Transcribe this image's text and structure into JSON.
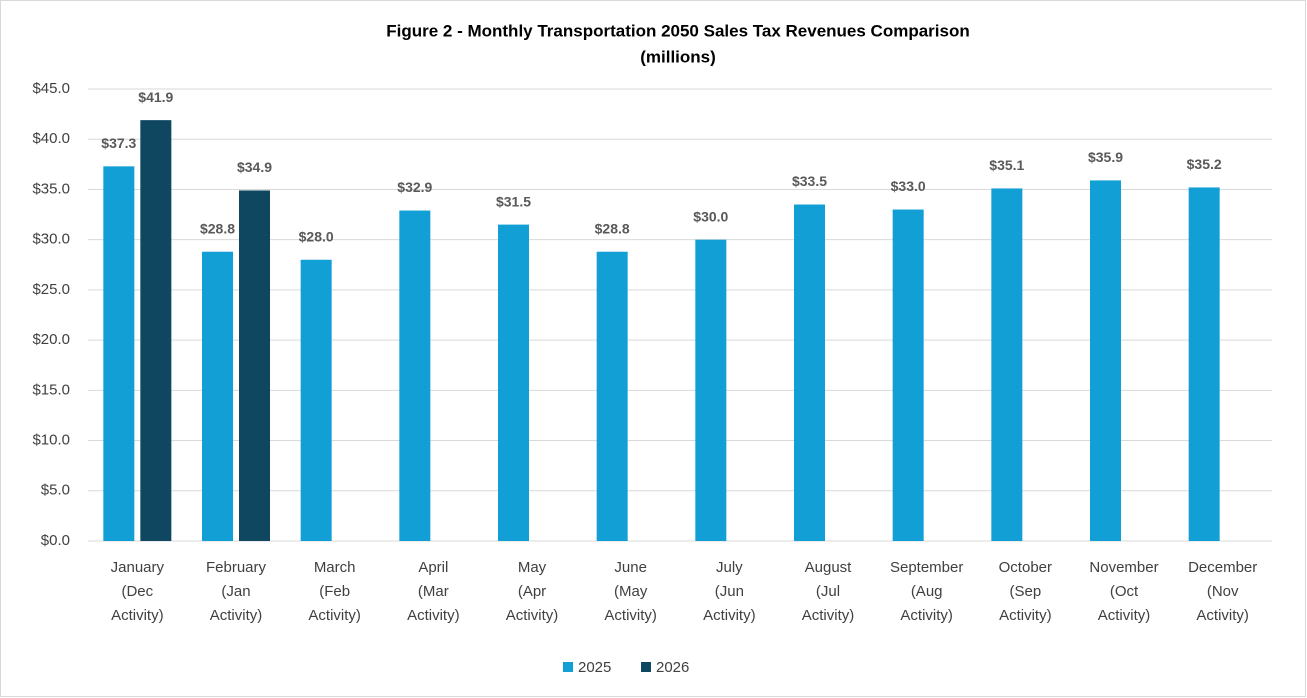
{
  "chart_data": {
    "type": "bar",
    "title": "Figure 2 - Monthly Transportation 2050 Sales Tax Revenues Comparison",
    "subtitle": "(millions)",
    "categories": [
      [
        "January",
        "(Dec",
        "Activity)"
      ],
      [
        "February",
        "(Jan",
        "Activity)"
      ],
      [
        "March",
        "(Feb",
        "Activity)"
      ],
      [
        "April",
        "(Mar",
        "Activity)"
      ],
      [
        "May",
        "(Apr",
        "Activity)"
      ],
      [
        "June",
        "(May",
        "Activity)"
      ],
      [
        "July",
        "(Jun",
        "Activity)"
      ],
      [
        "August",
        "(Jul",
        "Activity)"
      ],
      [
        "September",
        "(Aug",
        "Activity)"
      ],
      [
        "October",
        "(Sep",
        "Activity)"
      ],
      [
        "November",
        "(Oct",
        "Activity)"
      ],
      [
        "December",
        "(Nov",
        "Activity)"
      ]
    ],
    "series": [
      {
        "name": "2025",
        "color": "#129fd6",
        "values": [
          37.3,
          28.8,
          28.0,
          32.9,
          31.5,
          28.8,
          30.0,
          33.5,
          33.0,
          35.1,
          35.9,
          35.2
        ],
        "value_labels": [
          "$37.3",
          "$28.8",
          "$28.0",
          "$32.9",
          "$31.5",
          "$28.8",
          "$30.0",
          "$33.5",
          "$33.0",
          "$35.1",
          "$35.9",
          "$35.2"
        ]
      },
      {
        "name": "2026",
        "color": "#0f4761",
        "values": [
          41.9,
          34.9,
          null,
          null,
          null,
          null,
          null,
          null,
          null,
          null,
          null,
          null
        ],
        "value_labels": [
          "$41.9",
          "$34.9",
          null,
          null,
          null,
          null,
          null,
          null,
          null,
          null,
          null,
          null
        ]
      }
    ],
    "ylim": [
      0,
      45
    ],
    "yticks": [
      {
        "value": 0,
        "label": "$0.0"
      },
      {
        "value": 5,
        "label": "$5.0"
      },
      {
        "value": 10,
        "label": "$10.0"
      },
      {
        "value": 15,
        "label": "$15.0"
      },
      {
        "value": 20,
        "label": "$20.0"
      },
      {
        "value": 25,
        "label": "$25.0"
      },
      {
        "value": 30,
        "label": "$30.0"
      },
      {
        "value": 35,
        "label": "$35.0"
      },
      {
        "value": 40,
        "label": "$40.0"
      },
      {
        "value": 45,
        "label": "$45.0"
      }
    ],
    "grid": true,
    "legend": "bottom"
  }
}
